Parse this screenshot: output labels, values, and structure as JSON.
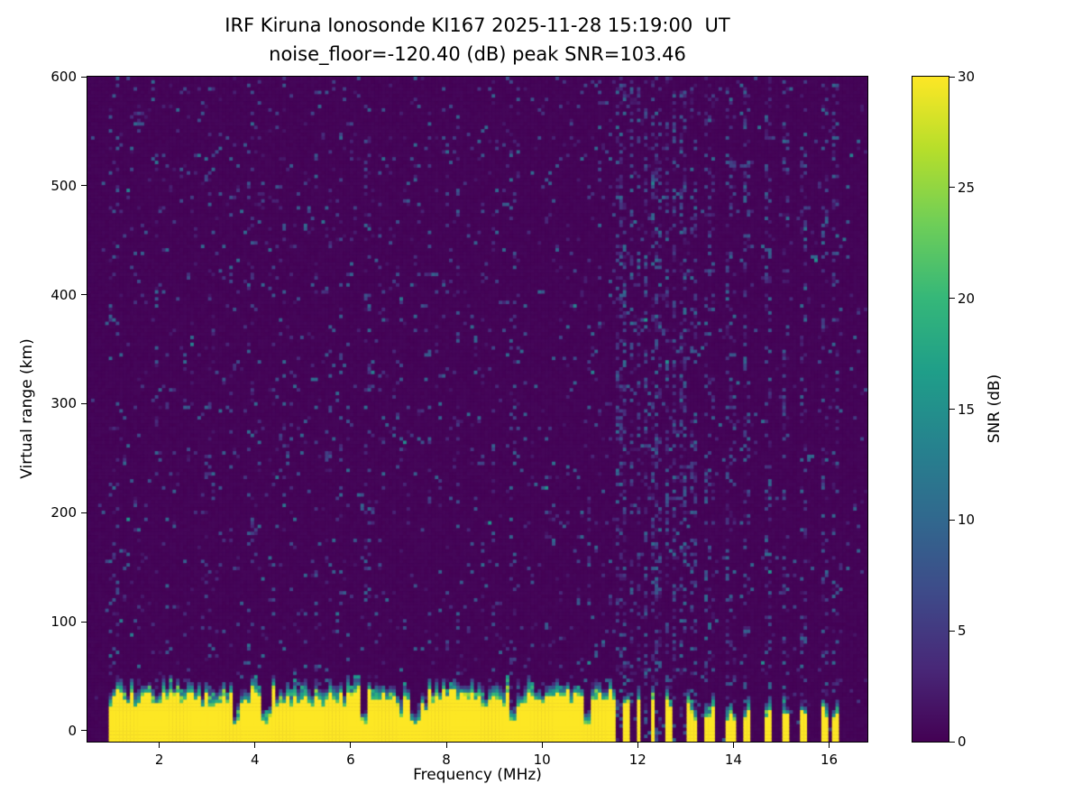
{
  "chart_data": {
    "type": "heatmap",
    "title": "IRF Kiruna Ionosonde KI167 2025-11-28 15:19:00  UT",
    "subtitle": "noise_floor=-120.40 (dB) peak SNR=103.46",
    "station": "KI167",
    "timestamp_ut": "2025-11-28 15:19:00",
    "noise_floor_db": -120.4,
    "peak_snr_db": 103.46,
    "xlabel": "Frequency (MHz)",
    "ylabel": "Virtual range (km)",
    "x_range": [
      0.5,
      16.8
    ],
    "y_range": [
      -10,
      600
    ],
    "x_ticks": [
      2,
      4,
      6,
      8,
      10,
      12,
      14,
      16
    ],
    "y_ticks": [
      0,
      100,
      200,
      300,
      400,
      500,
      600
    ],
    "colorbar": {
      "label": "SNR (dB)",
      "range": [
        0,
        30
      ],
      "ticks": [
        0,
        5,
        10,
        15,
        20,
        25,
        30
      ],
      "colormap": "viridis"
    },
    "colormap_stops": [
      "#440154",
      "#482878",
      "#3e4a89",
      "#31688e",
      "#26828e",
      "#1f9e89",
      "#35b779",
      "#6ece58",
      "#b5de2b",
      "#fde725"
    ],
    "heatmap": {
      "seed": 167251119,
      "nx": 220,
      "ny": 190,
      "background_snr_db": 0.4,
      "base_speckle_density": 0.05,
      "data_start_mhz": 0.95,
      "ground_band_top_km": 30,
      "band_solid_to_mhz": 11.55,
      "band_comb_to_mhz": 13.1,
      "notch_freqs_mhz": [
        3.6,
        4.25,
        6.3,
        7.35,
        9.4,
        10.95
      ],
      "noisy_columns_mhz": [
        3.05,
        6.35,
        9.45,
        13.5
      ],
      "sparse_stripes_mhz": [
        13.15,
        13.5,
        13.95,
        14.3,
        14.75,
        15.1,
        15.45,
        15.9,
        16.15
      ]
    }
  }
}
